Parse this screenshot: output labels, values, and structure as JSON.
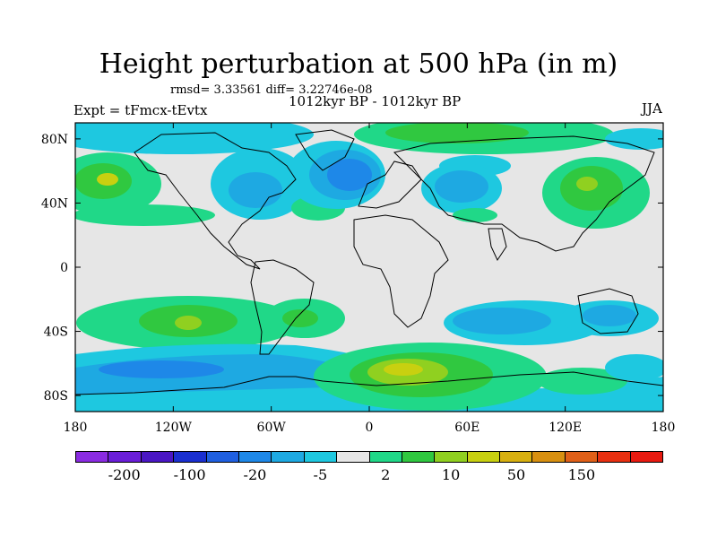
{
  "title": "Height perturbation at 500 hPa (in m)",
  "stats_text": "rmsd= 3.33561 diff= 3.22746e-08",
  "experiment_text": "Expt = tFmcx-tEvtx",
  "period_text": "1012kyr BP - 1012kyr BP",
  "season": "JJA",
  "lat_labels": [
    "80N",
    "40N",
    "0",
    "40S",
    "80S"
  ],
  "lon_labels": [
    "180",
    "120W",
    "60W",
    "0",
    "60E",
    "120E",
    "180"
  ],
  "colorbar": {
    "labels": [
      "-200",
      "-100",
      "-20",
      "-5",
      "2",
      "10",
      "50",
      "150"
    ],
    "colors": [
      "#8a2be2",
      "#6a1ed8",
      "#4a16c4",
      "#1a2fd0",
      "#1f5fe0",
      "#1e88e8",
      "#1ea9e2",
      "#1ec8e0",
      "#e6e6e6",
      "#20d888",
      "#30c840",
      "#90d020",
      "#c8d010",
      "#d8b010",
      "#d89010",
      "#e06018",
      "#e83010",
      "#e81a10"
    ]
  },
  "map_data": {
    "background": "#e6e6e6",
    "lat_range": [
      -90,
      90
    ],
    "lon_range": [
      -180,
      180
    ],
    "anomaly_regions": [
      {
        "name": "north-atlantic-low",
        "lon": -35,
        "lat": 58,
        "level": -10
      },
      {
        "name": "north-pacific-high",
        "lon": -160,
        "lat": 50,
        "level": 20
      },
      {
        "name": "eurasia-high",
        "lon": 40,
        "lat": 72,
        "level": 15
      },
      {
        "name": "east-asia-high",
        "lon": 130,
        "lat": 48,
        "level": 20
      },
      {
        "name": "europe-low",
        "lon": 60,
        "lat": 48,
        "level": -10
      },
      {
        "name": "south-pacific-high",
        "lon": -110,
        "lat": -35,
        "level": 20
      },
      {
        "name": "south-indian-high",
        "lon": 50,
        "lat": -65,
        "level": 30
      },
      {
        "name": "southern-ocean-low",
        "lon": -120,
        "lat": -70,
        "level": -20
      },
      {
        "name": "australia-low",
        "lon": 130,
        "lat": -35,
        "level": -10
      }
    ]
  }
}
